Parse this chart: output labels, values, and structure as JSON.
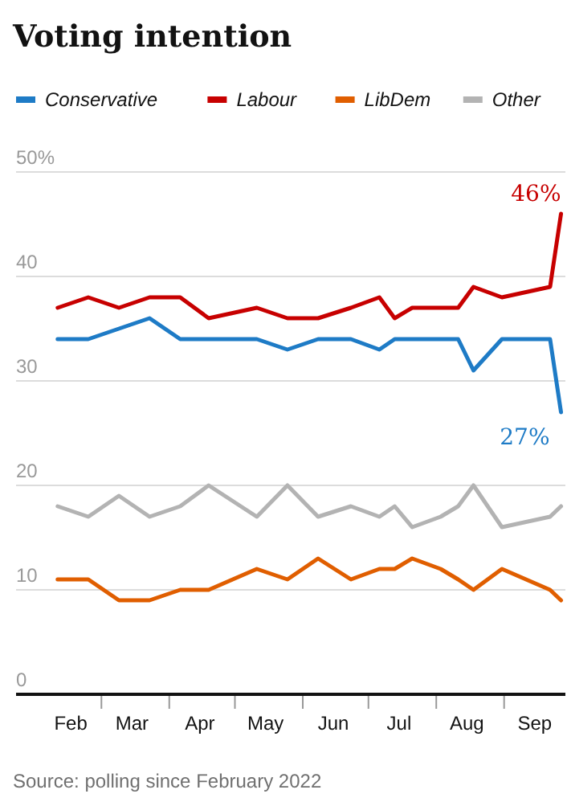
{
  "chart_data": {
    "type": "line",
    "title": "Voting intention",
    "x": [
      "2022-02-09",
      "2022-02-23",
      "2022-03-09",
      "2022-03-23",
      "2022-04-06",
      "2022-04-19",
      "2022-05-11",
      "2022-05-25",
      "2022-06-08",
      "2022-06-23",
      "2022-07-06",
      "2022-07-13",
      "2022-07-21",
      "2022-08-03",
      "2022-08-11",
      "2022-08-18",
      "2022-08-31",
      "2022-09-22",
      "2022-09-27"
    ],
    "series": [
      {
        "name": "Conservative",
        "color": "#1e7bc6",
        "values": [
          34,
          34,
          35,
          36,
          34,
          34,
          34,
          33,
          34,
          34,
          33,
          34,
          34,
          34,
          34,
          31,
          34,
          34,
          27
        ]
      },
      {
        "name": "Labour",
        "color": "#c70000",
        "values": [
          37,
          38,
          37,
          38,
          38,
          36,
          37,
          36,
          36,
          37,
          38,
          36,
          37,
          37,
          37,
          39,
          38,
          39,
          46
        ]
      },
      {
        "name": "LibDem",
        "color": "#e05e00",
        "values": [
          11,
          11,
          9,
          9,
          10,
          10,
          12,
          11,
          13,
          11,
          12,
          12,
          13,
          12,
          11,
          10,
          12,
          10,
          9
        ]
      },
      {
        "name": "Other",
        "color": "#b3b3b3",
        "values": [
          18,
          17,
          19,
          17,
          18,
          20,
          17,
          20,
          17,
          18,
          17,
          18,
          16,
          17,
          18,
          20,
          16,
          17,
          18
        ]
      }
    ],
    "xlim": [
      "2022-01-21",
      "2022-09-29"
    ],
    "xticks": [
      {
        "value": "2022-02-15",
        "label": "Feb"
      },
      {
        "value": "2022-03-01",
        "label": null
      },
      {
        "value": "2022-03-15",
        "label": "Mar"
      },
      {
        "value": "2022-04-01",
        "label": null
      },
      {
        "value": "2022-04-15",
        "label": "Apr"
      },
      {
        "value": "2022-05-01",
        "label": null
      },
      {
        "value": "2022-05-15",
        "label": "May"
      },
      {
        "value": "2022-06-01",
        "label": null
      },
      {
        "value": "2022-06-15",
        "label": "Jun"
      },
      {
        "value": "2022-07-01",
        "label": null
      },
      {
        "value": "2022-07-15",
        "label": "Jul"
      },
      {
        "value": "2022-08-01",
        "label": null
      },
      {
        "value": "2022-08-15",
        "label": "Aug"
      },
      {
        "value": "2022-09-01",
        "label": null
      },
      {
        "value": "2022-09-15",
        "label": "Sep"
      }
    ],
    "ylim": [
      0,
      50
    ],
    "yticks": [
      0,
      10,
      20,
      30,
      40,
      {
        "value": 50,
        "label": "50%"
      }
    ],
    "grid": "y",
    "legend": "top left",
    "marker": "none",
    "line_style": "solid",
    "annotations": [
      {
        "text": "46%",
        "x": "2022-09-27",
        "y": 46
      },
      {
        "text": "27%",
        "x": "2022-09-27",
        "y": 27
      },
      "Source: polling since February 2022"
    ]
  }
}
